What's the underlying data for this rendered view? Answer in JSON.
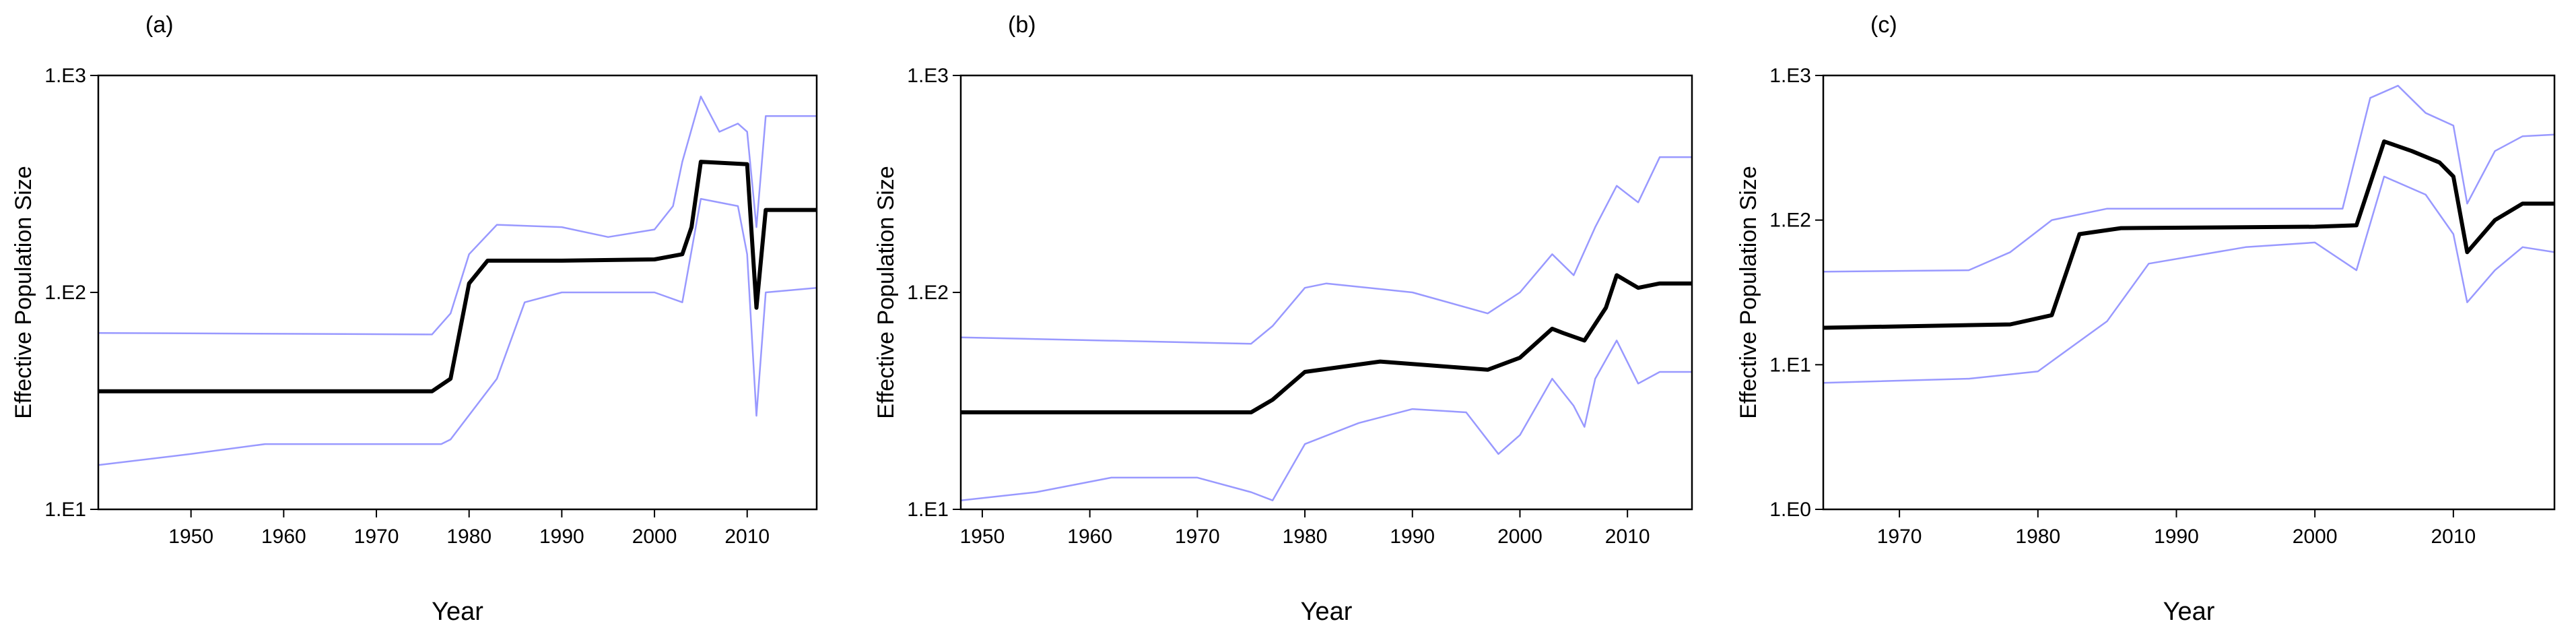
{
  "chart_data": [
    {
      "type": "line",
      "title": "(a)",
      "x_label": "Year",
      "y_label": "Effective Population Size",
      "log_y": true,
      "grid": false,
      "xlim": [
        1940,
        2017.5
      ],
      "xticks": [
        1950,
        1960,
        1970,
        1980,
        1990,
        2000,
        2010
      ],
      "ylim": [
        10,
        1000
      ],
      "yticks": [
        {
          "value": 10,
          "label": "1.E1"
        },
        {
          "value": 100,
          "label": "1.E2"
        },
        {
          "value": 1000,
          "label": "1.E3"
        }
      ],
      "series": [
        {
          "color": "#000000",
          "x": [
            1940,
            1976,
            1978,
            1980,
            1982,
            1990,
            2000,
            2003,
            2004,
            2005,
            2010,
            2011,
            2012,
            2017.5
          ],
          "values": [
            35,
            35,
            40,
            110,
            140,
            140,
            142,
            150,
            200,
            400,
            390,
            85,
            240,
            240
          ]
        },
        {
          "color": "#9999ff",
          "x": [
            1940,
            1976,
            1978,
            1980,
            1983,
            1990,
            1995,
            2000,
            2002,
            2003,
            2005,
            2007,
            2009,
            2010,
            2011,
            2012,
            2017.5
          ],
          "values": [
            65,
            64,
            80,
            150,
            205,
            200,
            180,
            195,
            250,
            400,
            800,
            550,
            600,
            550,
            200,
            650,
            650
          ]
        },
        {
          "color": "#9999ff",
          "x": [
            1940,
            1950,
            1958,
            1977,
            1978,
            1983,
            1986,
            1990,
            2000,
            2003,
            2005,
            2009,
            2010,
            2011,
            2012,
            2017.5
          ],
          "values": [
            16,
            18,
            20,
            20,
            21,
            40,
            90,
            100,
            100,
            90,
            270,
            250,
            150,
            27,
            100,
            105
          ]
        }
      ]
    },
    {
      "type": "line",
      "title": "(b)",
      "x_label": "Year",
      "y_label": "Effective Population Size",
      "log_y": true,
      "grid": false,
      "xlim": [
        1948,
        2016
      ],
      "xticks": [
        1950,
        1960,
        1970,
        1980,
        1990,
        2000,
        2010
      ],
      "ylim": [
        10,
        1000
      ],
      "yticks": [
        {
          "value": 10,
          "label": "1.E1"
        },
        {
          "value": 100,
          "label": "1.E2"
        },
        {
          "value": 1000,
          "label": "1.E3"
        }
      ],
      "series": [
        {
          "color": "#000000",
          "x": [
            1948,
            1975,
            1977,
            1980,
            1987,
            1997,
            2000,
            2003,
            2004,
            2006,
            2008,
            2009,
            2011,
            2013,
            2016
          ],
          "values": [
            28,
            28,
            32,
            43,
            48,
            44,
            50,
            68,
            65,
            60,
            85,
            120,
            105,
            110,
            110
          ]
        },
        {
          "color": "#9999ff",
          "x": [
            1948,
            1975,
            1977,
            1980,
            1982,
            1990,
            1997,
            2000,
            2003,
            2005,
            2007,
            2009,
            2011,
            2013,
            2016
          ],
          "values": [
            62,
            58,
            70,
            105,
            110,
            100,
            80,
            100,
            150,
            120,
            200,
            310,
            260,
            420,
            420
          ]
        },
        {
          "color": "#9999ff",
          "x": [
            1948,
            1955,
            1962,
            1970,
            1975,
            1977,
            1980,
            1985,
            1990,
            1995,
            1998,
            2000,
            2003,
            2005,
            2006,
            2007,
            2009,
            2011,
            2013,
            2016
          ],
          "values": [
            11,
            12,
            14,
            14,
            12,
            11,
            20,
            25,
            29,
            28,
            18,
            22,
            40,
            30,
            24,
            40,
            60,
            38,
            43,
            43
          ]
        }
      ]
    },
    {
      "type": "line",
      "title": "(c)",
      "x_label": "Year",
      "y_label": "Effective Population Size",
      "log_y": true,
      "grid": false,
      "xlim": [
        1964.5,
        2017.3
      ],
      "xticks": [
        1970,
        1980,
        1990,
        2000,
        2010
      ],
      "ylim": [
        1,
        1000
      ],
      "yticks": [
        {
          "value": 1,
          "label": "1.E0"
        },
        {
          "value": 10,
          "label": "1.E1"
        },
        {
          "value": 100,
          "label": "1.E2"
        },
        {
          "value": 1000,
          "label": "1.E3"
        }
      ],
      "series": [
        {
          "color": "#000000",
          "x": [
            1964.5,
            1978,
            1981,
            1983,
            1986,
            2000,
            2003,
            2005,
            2007,
            2009,
            2010,
            2011,
            2013,
            2015,
            2017.3
          ],
          "values": [
            18,
            19,
            22,
            80,
            88,
            90,
            92,
            350,
            300,
            250,
            200,
            60,
            100,
            130,
            130
          ]
        },
        {
          "color": "#9999ff",
          "x": [
            1964.5,
            1975,
            1978,
            1981,
            1985,
            2002,
            2004,
            2006,
            2008,
            2010,
            2011,
            2013,
            2015,
            2017.3
          ],
          "values": [
            44,
            45,
            60,
            100,
            120,
            120,
            700,
            850,
            550,
            450,
            130,
            300,
            380,
            390
          ]
        },
        {
          "color": "#9999ff",
          "x": [
            1964.5,
            1975,
            1980,
            1985,
            1988,
            1995,
            2000,
            2003,
            2005,
            2008,
            2010,
            2011,
            2013,
            2015,
            2017.3
          ],
          "values": [
            7.5,
            8,
            9,
            20,
            50,
            65,
            70,
            45,
            200,
            150,
            80,
            27,
            45,
            65,
            60
          ]
        }
      ]
    }
  ]
}
